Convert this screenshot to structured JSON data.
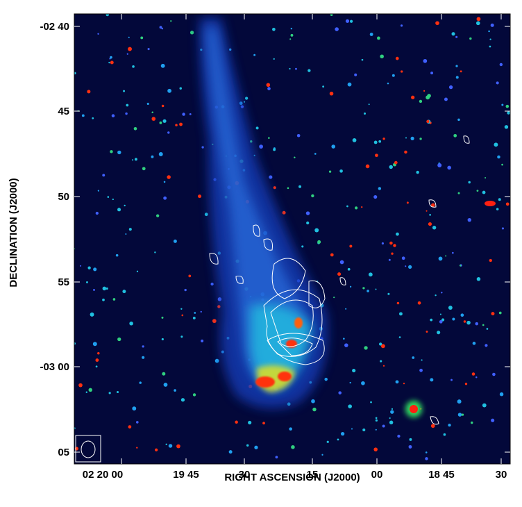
{
  "y_axis": {
    "label": "DECLINATION (J2000)",
    "ticks": [
      "-02 40",
      "45",
      "50",
      "55",
      "-03 00",
      "05"
    ]
  },
  "x_axis": {
    "label": "RIGHT ASCENSION (J2000)",
    "ticks": [
      "02 20 00",
      "19 45",
      "30",
      "15",
      "00",
      "18 45",
      "30"
    ]
  }
}
